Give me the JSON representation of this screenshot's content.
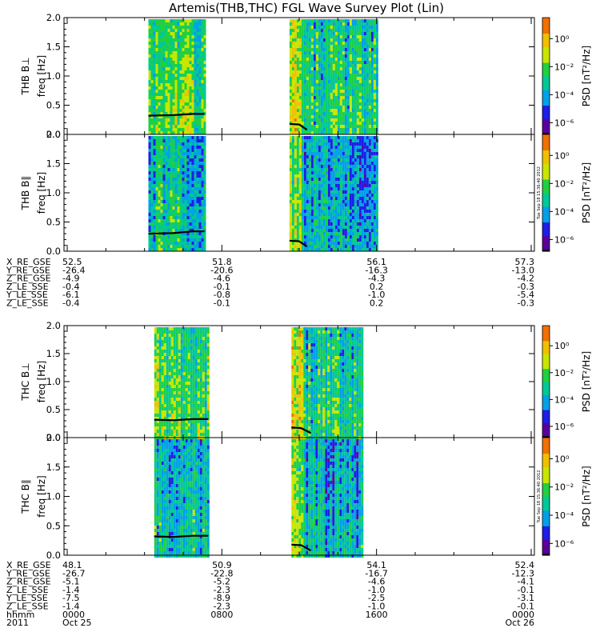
{
  "title": "Artemis(THB,THC) FGL Wave Survey Plot (Lin)",
  "colors": {
    "palette": [
      "#ffffff",
      "#000000",
      "#5a009a",
      "#1e1ee6",
      "#00a0e6",
      "#00c896",
      "#20d040",
      "#c8e600",
      "#f0c000",
      "#f07000",
      "#e00000"
    ],
    "trace": "#000000"
  },
  "chart_data": [
    {
      "type": "heatmap",
      "probe": "THB",
      "ylabel": "THB B⊥",
      "yunit": "freq [Hz]",
      "ylim": [
        0,
        2.0
      ],
      "yticks": [
        "0.0",
        "0.5",
        "1.0",
        "1.5",
        "2.0"
      ],
      "colorbar": {
        "label": "PSD [nT²/Hz]",
        "ticks": [
          "10⁰",
          "10⁻²",
          "10⁻⁴",
          "10⁻⁶"
        ],
        "scale": "log"
      },
      "data_intervals_hour": [
        [
          4.2,
          7.1
        ],
        [
          11.5,
          16.0
        ]
      ],
      "trace_solid": [
        [
          4.2,
          0.32
        ],
        [
          5.5,
          0.33
        ],
        [
          6.5,
          0.35
        ],
        [
          7.1,
          0.35
        ],
        [
          11.5,
          0.18
        ],
        [
          12.0,
          0.17
        ],
        [
          12.4,
          0.08
        ],
        [
          16.0,
          0.07
        ]
      ],
      "trace_dashed": [
        [
          4.2,
          0.05
        ],
        [
          7.1,
          0.05
        ],
        [
          11.5,
          0.02
        ],
        [
          16.0,
          0.02
        ]
      ]
    },
    {
      "type": "heatmap",
      "probe": "THB",
      "ylabel": "THB B∥",
      "yunit": "freq [Hz]",
      "ylim": [
        0,
        2.0
      ],
      "yticks": [
        "0.0",
        "0.5",
        "1.0",
        "1.5",
        "2.0"
      ],
      "colorbar": {
        "label": "PSD [nT²/Hz]",
        "ticks": [
          "10⁰",
          "10⁻²",
          "10⁻⁴",
          "10⁻⁶"
        ],
        "scale": "log"
      },
      "data_intervals_hour": [
        [
          4.2,
          7.1
        ],
        [
          11.5,
          16.0
        ]
      ],
      "trace_solid": [
        [
          4.2,
          0.3
        ],
        [
          5.5,
          0.31
        ],
        [
          6.5,
          0.34
        ],
        [
          7.1,
          0.34
        ],
        [
          11.5,
          0.18
        ],
        [
          12.0,
          0.17
        ],
        [
          12.4,
          0.08
        ],
        [
          16.0,
          0.07
        ]
      ],
      "trace_dashed": [
        [
          4.2,
          0.05
        ],
        [
          7.1,
          0.05
        ],
        [
          11.5,
          0.02
        ],
        [
          16.0,
          0.02
        ]
      ]
    },
    {
      "type": "heatmap",
      "probe": "THC",
      "ylabel": "THC B⊥",
      "yunit": "freq [Hz]",
      "ylim": [
        0,
        2.0
      ],
      "yticks": [
        "0.0",
        "0.5",
        "1.0",
        "1.5",
        "2.0"
      ],
      "colorbar": {
        "label": "PSD [nT²/Hz]",
        "ticks": [
          "10⁰",
          "10⁻²",
          "10⁻⁴",
          "10⁻⁶"
        ],
        "scale": "log"
      },
      "data_intervals_hour": [
        [
          4.5,
          7.3
        ],
        [
          11.6,
          15.3
        ]
      ],
      "trace_solid": [
        [
          4.5,
          0.32
        ],
        [
          5.5,
          0.31
        ],
        [
          6.5,
          0.33
        ],
        [
          7.3,
          0.33
        ],
        [
          11.6,
          0.18
        ],
        [
          12.1,
          0.17
        ],
        [
          12.6,
          0.08
        ],
        [
          15.3,
          0.07
        ]
      ],
      "trace_dashed": [
        [
          4.5,
          0.05
        ],
        [
          7.3,
          0.05
        ],
        [
          11.6,
          0.02
        ],
        [
          15.3,
          0.02
        ]
      ]
    },
    {
      "type": "heatmap",
      "probe": "THC",
      "ylabel": "THC B∥",
      "yunit": "freq [Hz]",
      "ylim": [
        0,
        2.0
      ],
      "yticks": [
        "0.0",
        "0.5",
        "1.0",
        "1.5",
        "2.0"
      ],
      "colorbar": {
        "label": "PSD [nT²/Hz]",
        "ticks": [
          "10⁰",
          "10⁻²",
          "10⁻⁴",
          "10⁻⁶"
        ],
        "scale": "log"
      },
      "data_intervals_hour": [
        [
          4.5,
          7.3
        ],
        [
          11.6,
          15.3
        ]
      ],
      "trace_solid": [
        [
          4.5,
          0.32
        ],
        [
          5.5,
          0.31
        ],
        [
          6.5,
          0.33
        ],
        [
          7.3,
          0.33
        ],
        [
          11.6,
          0.18
        ],
        [
          12.1,
          0.17
        ],
        [
          12.6,
          0.08
        ],
        [
          15.3,
          0.07
        ]
      ],
      "trace_dashed": [
        [
          4.5,
          0.05
        ],
        [
          7.3,
          0.05
        ],
        [
          11.6,
          0.02
        ],
        [
          15.3,
          0.02
        ]
      ]
    }
  ],
  "stamp": "Tue Sep 18 15:36:40 2012",
  "ephem_thb": {
    "labels": [
      "X_RE_GSE",
      "Y_RE_GSE",
      "Z_RE_GSE",
      "Z_LE_SSE",
      "Y_LE_SSE",
      "Z_LE_SSE"
    ],
    "columns": [
      [
        "52.5",
        "-26.4",
        "-4.9",
        "-0.4",
        "-6.1",
        "-0.4"
      ],
      [
        "51.8",
        "-20.6",
        "-4.6",
        "-0.1",
        "-0.8",
        "-0.1"
      ],
      [
        "56.1",
        "-16.3",
        "-4.3",
        "0.2",
        "-1.0",
        "0.2"
      ],
      [
        "57.3",
        "-13.0",
        "-4.2",
        "-0.3",
        "-5.4",
        "-0.3"
      ]
    ]
  },
  "ephem_thc": {
    "labels": [
      "X_RE_GSE",
      "Y_RE_GSE",
      "Z_RE_GSE",
      "Z_LE_SSE",
      "Y_LE_SSE",
      "Z_LE_SSE",
      "hhmm",
      "2011"
    ],
    "columns": [
      [
        "48.1",
        "-26.7",
        "-5.1",
        "-1.4",
        "-7.5",
        "-1.4",
        "0000",
        "Oct 25"
      ],
      [
        "50.9",
        "-22.8",
        "-5.2",
        "-2.3",
        "-8.9",
        "-2.3",
        "0800",
        ""
      ],
      [
        "54.1",
        "-16.7",
        "-4.6",
        "-1.0",
        "-2.5",
        "-1.0",
        "1600",
        ""
      ],
      [
        "52.4",
        "-12.3",
        "-4.1",
        "-0.1",
        "-3.1",
        "-0.1",
        "0000",
        "Oct 26"
      ]
    ]
  }
}
